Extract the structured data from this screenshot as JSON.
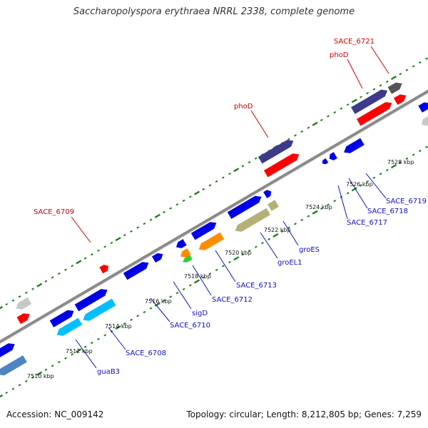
{
  "title": "Saccharopolyspora erythraea NRRL 2338, complete genome",
  "footer": {
    "accession": "Accession: NC_009142",
    "summary": "Topology: circular; Length: 8,212,805 bp; Genes: 7,259"
  },
  "colors": {
    "backbone": "#8a8a8a",
    "tick": "#1e7f1e",
    "label_red": "#d00000",
    "label_blue": "#1010c0",
    "dark_blue": "#0000e6",
    "light_blue": "#00bfff",
    "steel": "#4f84c4",
    "purple": "#3d3a8c",
    "red": "#ff0000",
    "grey": "#c8c8c8",
    "orange": "#ff8c00",
    "green": "#33cc33",
    "olive": "#b5b07a"
  },
  "kbp_labels": [
    "7510 kbp",
    "7512 kbp",
    "7514 kbp",
    "7516 kbp",
    "7518 kbp",
    "7520 kbp",
    "7522 kbp",
    "7524 kbp",
    "7526 kbp",
    "7528 kbp"
  ],
  "gene_labels": [
    {
      "name": "SACE_6721",
      "side": "top"
    },
    {
      "name": "phoD",
      "side": "top"
    },
    {
      "name": "phoD",
      "side": "top"
    },
    {
      "name": "SACE_6709",
      "side": "top"
    },
    {
      "name": "SACE_6719",
      "side": "bottom"
    },
    {
      "name": "SACE_6718",
      "side": "bottom"
    },
    {
      "name": "SACE_6717",
      "side": "bottom"
    },
    {
      "name": "groES",
      "side": "bottom"
    },
    {
      "name": "groEL1",
      "side": "bottom"
    },
    {
      "name": "SACE_6713",
      "side": "bottom"
    },
    {
      "name": "SACE_6712",
      "side": "bottom"
    },
    {
      "name": "sigD",
      "side": "bottom"
    },
    {
      "name": "SACE_6710",
      "side": "bottom"
    },
    {
      "name": "SACE_6708",
      "side": "bottom"
    },
    {
      "name": "guaB3",
      "side": "bottom"
    }
  ]
}
